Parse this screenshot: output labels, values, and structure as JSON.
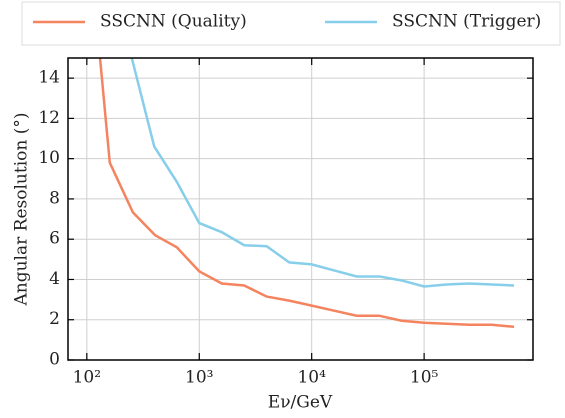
{
  "chart_data": {
    "type": "line",
    "xlabel": "Eν/GeV",
    "ylabel": "Angular Resolution (°)",
    "xscale": "log",
    "xlim": [
      68,
      930000
    ],
    "ylim": [
      0,
      15
    ],
    "xticks": [
      {
        "value": 100,
        "label": "10²"
      },
      {
        "value": 1000,
        "label": "10³"
      },
      {
        "value": 10000,
        "label": "10⁴"
      },
      {
        "value": 100000,
        "label": "10⁵"
      }
    ],
    "yticks": [
      0,
      2,
      4,
      6,
      8,
      10,
      12,
      14
    ],
    "grid": true,
    "legend": "top",
    "series": [
      {
        "name": "SSCNN (Quality)",
        "color": "#f4845f",
        "x": [
          131,
          160,
          257,
          404,
          631,
          1000,
          1585,
          2512,
          3981,
          6310,
          10000,
          15849,
          25119,
          39811,
          63096,
          100000,
          158489,
          251189,
          398107,
          630957
        ],
        "values": [
          15,
          9.8,
          7.33,
          6.2,
          5.6,
          4.4,
          3.8,
          3.7,
          3.15,
          2.95,
          2.7,
          2.45,
          2.2,
          2.2,
          1.95,
          1.85,
          1.8,
          1.75,
          1.75,
          1.65
        ]
      },
      {
        "name": "SSCNN (Trigger)",
        "color": "#87ceeb",
        "x": [
          251,
          398,
          631,
          1000,
          1585,
          2512,
          3981,
          6310,
          10000,
          15849,
          25119,
          39811,
          63096,
          100000,
          158489,
          251189,
          398107,
          630957
        ],
        "values": [
          15,
          10.6,
          8.85,
          6.8,
          6.35,
          5.7,
          5.65,
          4.85,
          4.75,
          4.45,
          4.15,
          4.15,
          3.95,
          3.65,
          3.75,
          3.8,
          3.75,
          3.7
        ]
      }
    ]
  }
}
